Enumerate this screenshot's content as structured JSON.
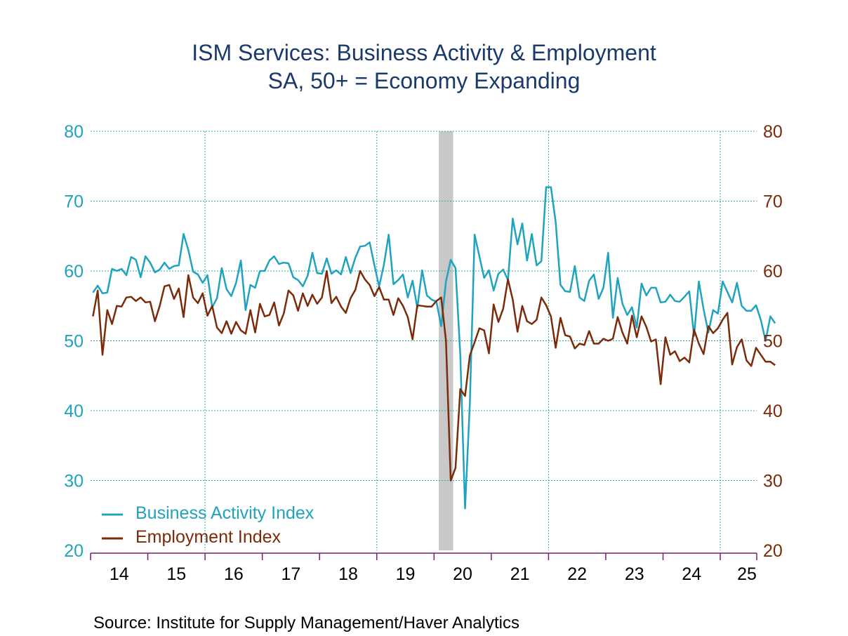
{
  "chart_data": {
    "type": "line",
    "title": "ISM Services: Business Activity & Employment",
    "subtitle": "SA, 50+ = Economy Expanding",
    "source": "Source:  Institute for Supply Management/Haver Analytics",
    "x_start": "2014-01",
    "x_end": "2025-05",
    "x_tick_labels": [
      "14",
      "15",
      "16",
      "17",
      "18",
      "19",
      "20",
      "21",
      "22",
      "23",
      "24",
      "25"
    ],
    "y_left": {
      "ticks": [
        "80",
        "70",
        "60",
        "50",
        "40",
        "30",
        "20"
      ],
      "ylim": [
        20,
        80
      ]
    },
    "y_right": {
      "ticks": [
        "80",
        "70",
        "60",
        "50",
        "40",
        "30",
        "20"
      ],
      "ylim": [
        20,
        80
      ]
    },
    "recession_shading": {
      "start": "2020-02",
      "end": "2020-04",
      "color": "#c8c8c8"
    },
    "grid": true,
    "legend": "bottom-left",
    "colors": {
      "business": "#1fa3be",
      "employment": "#7b2a0a",
      "left_axis": "#1fa3be",
      "right_axis": "#7b2a0a",
      "title": "#1a3a6b",
      "grid": "#2ab0a4",
      "frame": "#7a1f6e"
    },
    "series": [
      {
        "name": "Business Activity Index",
        "key": "business",
        "values": [
          56.9,
          57.9,
          56.8,
          56.9,
          60.3,
          60.0,
          60.3,
          59.4,
          62.0,
          61.6,
          59.1,
          62.1,
          61.2,
          59.8,
          60.2,
          61.2,
          60.3,
          60.7,
          60.8,
          65.3,
          63.0,
          59.9,
          59.5,
          58.3,
          59.4,
          54.8,
          56.1,
          60.4,
          57.4,
          56.4,
          58.3,
          61.5,
          54.4,
          58.0,
          57.6,
          60.0,
          60.0,
          61.5,
          62.1,
          61.0,
          61.2,
          61.1,
          59.1,
          58.7,
          57.8,
          59.3,
          62.6,
          59.7,
          59.6,
          61.8,
          59.6,
          60.1,
          59.5,
          62.0,
          59.7,
          61.9,
          63.5,
          63.6,
          64.1,
          60.8,
          57.8,
          60.9,
          65.2,
          58.1,
          58.7,
          59.5,
          56.2,
          58.6,
          54.7,
          60.1,
          56.5,
          55.9,
          55.6,
          52.1,
          58.5,
          61.6,
          60.4,
          48.0,
          26.0,
          41.0,
          65.2,
          62.1,
          59.0,
          60.1,
          57.2,
          59.6,
          60.2,
          58.7,
          67.5,
          63.8,
          66.8,
          61.5,
          65.3,
          60.8,
          61.4,
          72.0,
          72.0,
          67.0,
          58.0,
          57.1,
          57.0,
          60.7,
          56.2,
          55.7,
          58.6,
          59.5,
          56.0,
          57.6,
          62.6,
          53.3,
          59.0,
          55.3,
          53.7,
          54.8,
          51.9,
          58.2,
          56.5,
          57.6,
          57.6,
          55.5,
          55.6,
          56.6,
          55.7,
          55.6,
          56.3,
          57.1,
          50.7,
          58.5,
          54.5,
          51.2,
          54.4,
          53.9,
          58.5,
          57.0,
          55.5,
          58.3,
          55.0,
          54.3,
          54.3,
          55.1,
          53.0,
          50.0,
          53.5,
          52.5
        ],
        "color": "#1fa3be"
      },
      {
        "name": "Employment Index",
        "key": "employment",
        "values": [
          53.5,
          57.2,
          48.0,
          54.4,
          52.4,
          55.0,
          54.9,
          56.2,
          56.3,
          55.7,
          56.2,
          55.5,
          55.6,
          52.8,
          55.0,
          57.8,
          58.0,
          56.0,
          57.5,
          53.4,
          59.4,
          56.2,
          55.4,
          56.8,
          53.6,
          55.0,
          51.9,
          51.1,
          52.8,
          51.0,
          52.7,
          51.5,
          51.0,
          54.4,
          51.2,
          55.3,
          53.5,
          53.7,
          55.5,
          52.2,
          53.9,
          57.2,
          56.5,
          54.3,
          56.8,
          55.0,
          56.6,
          55.3,
          56.2,
          60.0,
          55.4,
          56.3,
          54.9,
          54.0,
          56.1,
          57.3,
          60.0,
          58.8,
          58.0,
          56.4,
          57.7,
          55.9,
          55.9,
          53.7,
          56.1,
          55.0,
          53.4,
          50.2,
          55.1,
          55.0,
          54.9,
          54.9,
          55.7,
          56.2,
          50.0,
          30.0,
          31.8,
          43.1,
          42.1,
          47.9,
          49.8,
          51.8,
          51.5,
          48.2,
          55.2,
          52.7,
          54.6,
          58.8,
          55.9,
          51.3,
          55.0,
          52.8,
          52.4,
          53.0,
          56.2,
          55.1,
          53.5,
          49.0,
          53.3,
          50.8,
          50.6,
          48.9,
          49.6,
          49.4,
          51.4,
          49.6,
          49.6,
          50.3,
          50.0,
          50.3,
          53.4,
          51.2,
          49.6,
          53.6,
          50.5,
          53.5,
          52.0,
          49.9,
          50.2,
          43.8,
          50.5,
          48.0,
          48.5,
          47.1,
          47.6,
          46.9,
          51.6,
          49.6,
          48.1,
          52.1,
          51.1,
          51.8,
          53.0,
          54.0,
          46.6,
          49.1,
          50.2,
          47.2,
          46.4,
          49.0,
          48.0,
          47.0,
          47.0,
          46.5
        ],
        "color": "#7b2a0a"
      }
    ]
  }
}
